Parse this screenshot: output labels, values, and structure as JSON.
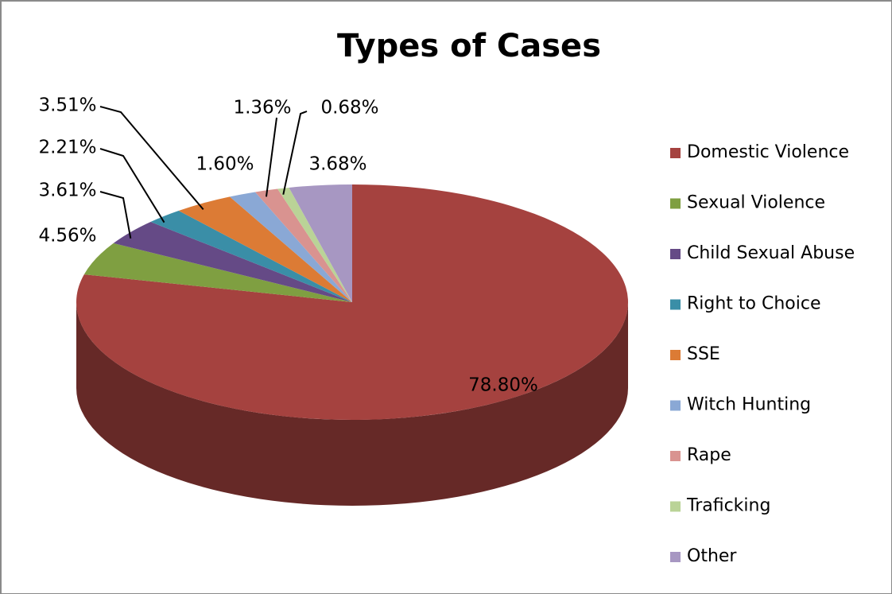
{
  "chart_data": {
    "type": "pie",
    "title": "Types of Cases",
    "categories": [
      "Domestic Violence",
      "Sexual Violence",
      "Child Sexual Abuse",
      "Right to Choice",
      "SSE",
      "Witch Hunting",
      "Rape",
      "Traficking",
      "Other"
    ],
    "values": [
      78.8,
      4.56,
      3.61,
      2.21,
      3.51,
      1.6,
      1.36,
      0.68,
      3.68
    ],
    "value_labels": [
      "78.80%",
      "4.56%",
      "3.61%",
      "2.21%",
      "3.51%",
      "1.60%",
      "1.36%",
      "0.68%",
      "3.68%"
    ],
    "colors": [
      "#a5423f",
      "#7f9f41",
      "#654a86",
      "#3a8ea7",
      "#dc7b35",
      "#8aa8d5",
      "#d99390",
      "#bad397",
      "#a797c2"
    ],
    "legend": "right"
  }
}
